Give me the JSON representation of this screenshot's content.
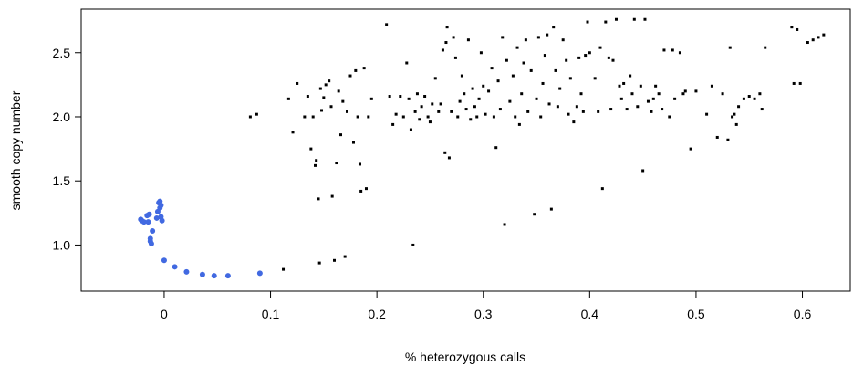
{
  "chart_data": {
    "type": "scatter",
    "title": "",
    "xlabel": "% heterozygous calls",
    "ylabel": "smooth copy number",
    "xlim": [
      -0.078,
      0.645
    ],
    "ylim": [
      0.64,
      2.84
    ],
    "xticks": [
      0,
      0.1,
      0.2,
      0.3,
      0.4,
      0.5,
      0.6
    ],
    "xtick_labels": [
      "0",
      "0.1",
      "0.2",
      "0.3",
      "0.4",
      "0.5",
      "0.6"
    ],
    "yticks": [
      1.0,
      1.5,
      2.0,
      2.5
    ],
    "ytick_labels": [
      "1.0",
      "1.5",
      "2.0",
      "2.5"
    ],
    "grid": false,
    "legend": "none",
    "series": [
      {
        "color": "#4169e1",
        "marker": "circle",
        "points": [
          [
            -0.022,
            1.2
          ],
          [
            -0.021,
            1.19
          ],
          [
            -0.019,
            1.18
          ],
          [
            -0.016,
            1.23
          ],
          [
            -0.014,
            1.24
          ],
          [
            -0.015,
            1.18
          ],
          [
            -0.013,
            1.05
          ],
          [
            -0.013,
            1.03
          ],
          [
            -0.012,
            1.01
          ],
          [
            -0.011,
            1.11
          ],
          [
            -0.007,
            1.21
          ],
          [
            -0.006,
            1.26
          ],
          [
            -0.005,
            1.33
          ],
          [
            -0.004,
            1.34
          ],
          [
            -0.004,
            1.29
          ],
          [
            -0.003,
            1.31
          ],
          [
            -0.003,
            1.22
          ],
          [
            -0.002,
            1.19
          ],
          [
            0.0,
            0.88
          ],
          [
            0.01,
            0.83
          ],
          [
            0.021,
            0.79
          ],
          [
            0.036,
            0.77
          ],
          [
            0.047,
            0.76
          ],
          [
            0.06,
            0.76
          ],
          [
            0.09,
            0.78
          ]
        ]
      },
      {
        "color": "#000000",
        "marker": "square",
        "points": [
          [
            0.081,
            2.0
          ],
          [
            0.087,
            2.02
          ],
          [
            0.112,
            0.81
          ],
          [
            0.117,
            2.14
          ],
          [
            0.121,
            1.88
          ],
          [
            0.125,
            2.26
          ],
          [
            0.132,
            2.0
          ],
          [
            0.135,
            2.16
          ],
          [
            0.138,
            1.75
          ],
          [
            0.14,
            2.0
          ],
          [
            0.142,
            1.62
          ],
          [
            0.143,
            1.66
          ],
          [
            0.145,
            1.36
          ],
          [
            0.146,
            0.86
          ],
          [
            0.147,
            2.22
          ],
          [
            0.148,
            2.05
          ],
          [
            0.15,
            2.15
          ],
          [
            0.152,
            2.25
          ],
          [
            0.155,
            2.28
          ],
          [
            0.157,
            2.08
          ],
          [
            0.158,
            1.38
          ],
          [
            0.16,
            0.88
          ],
          [
            0.162,
            1.64
          ],
          [
            0.164,
            2.2
          ],
          [
            0.166,
            1.86
          ],
          [
            0.168,
            2.12
          ],
          [
            0.17,
            0.91
          ],
          [
            0.172,
            2.04
          ],
          [
            0.175,
            2.32
          ],
          [
            0.178,
            1.8
          ],
          [
            0.18,
            2.36
          ],
          [
            0.182,
            2.0
          ],
          [
            0.184,
            1.63
          ],
          [
            0.185,
            1.42
          ],
          [
            0.188,
            2.38
          ],
          [
            0.19,
            1.44
          ],
          [
            0.192,
            2.0
          ],
          [
            0.195,
            2.14
          ],
          [
            0.209,
            2.72
          ],
          [
            0.212,
            2.16
          ],
          [
            0.215,
            1.94
          ],
          [
            0.218,
            2.02
          ],
          [
            0.222,
            2.16
          ],
          [
            0.225,
            2.0
          ],
          [
            0.228,
            2.42
          ],
          [
            0.23,
            2.14
          ],
          [
            0.232,
            1.9
          ],
          [
            0.234,
            1.0
          ],
          [
            0.236,
            2.04
          ],
          [
            0.238,
            2.18
          ],
          [
            0.24,
            1.98
          ],
          [
            0.242,
            2.08
          ],
          [
            0.245,
            2.16
          ],
          [
            0.248,
            2.0
          ],
          [
            0.25,
            1.96
          ],
          [
            0.252,
            2.1
          ],
          [
            0.255,
            2.3
          ],
          [
            0.258,
            2.04
          ],
          [
            0.26,
            2.1
          ],
          [
            0.262,
            2.52
          ],
          [
            0.264,
            1.72
          ],
          [
            0.265,
            2.58
          ],
          [
            0.266,
            2.7
          ],
          [
            0.268,
            1.68
          ],
          [
            0.27,
            2.04
          ],
          [
            0.272,
            2.62
          ],
          [
            0.274,
            2.46
          ],
          [
            0.276,
            2.0
          ],
          [
            0.278,
            2.12
          ],
          [
            0.28,
            2.32
          ],
          [
            0.282,
            2.18
          ],
          [
            0.284,
            2.06
          ],
          [
            0.286,
            2.6
          ],
          [
            0.288,
            1.98
          ],
          [
            0.29,
            2.22
          ],
          [
            0.292,
            2.08
          ],
          [
            0.294,
            2.0
          ],
          [
            0.296,
            2.14
          ],
          [
            0.298,
            2.5
          ],
          [
            0.3,
            2.24
          ],
          [
            0.302,
            2.02
          ],
          [
            0.305,
            2.2
          ],
          [
            0.308,
            2.38
          ],
          [
            0.31,
            2.0
          ],
          [
            0.312,
            1.76
          ],
          [
            0.314,
            2.28
          ],
          [
            0.316,
            2.06
          ],
          [
            0.318,
            2.62
          ],
          [
            0.32,
            1.16
          ],
          [
            0.322,
            2.44
          ],
          [
            0.325,
            2.12
          ],
          [
            0.328,
            2.32
          ],
          [
            0.33,
            2.0
          ],
          [
            0.332,
            2.54
          ],
          [
            0.334,
            1.94
          ],
          [
            0.336,
            2.18
          ],
          [
            0.338,
            2.42
          ],
          [
            0.34,
            2.6
          ],
          [
            0.342,
            2.04
          ],
          [
            0.345,
            2.36
          ],
          [
            0.348,
            1.24
          ],
          [
            0.35,
            2.14
          ],
          [
            0.352,
            2.62
          ],
          [
            0.354,
            2.0
          ],
          [
            0.356,
            2.26
          ],
          [
            0.358,
            2.48
          ],
          [
            0.36,
            2.64
          ],
          [
            0.362,
            2.1
          ],
          [
            0.364,
            1.28
          ],
          [
            0.366,
            2.7
          ],
          [
            0.368,
            2.36
          ],
          [
            0.37,
            2.08
          ],
          [
            0.372,
            2.22
          ],
          [
            0.375,
            2.6
          ],
          [
            0.378,
            2.44
          ],
          [
            0.38,
            2.02
          ],
          [
            0.382,
            2.3
          ],
          [
            0.385,
            1.96
          ],
          [
            0.388,
            2.08
          ],
          [
            0.39,
            2.46
          ],
          [
            0.392,
            2.18
          ],
          [
            0.394,
            2.04
          ],
          [
            0.396,
            2.48
          ],
          [
            0.398,
            2.74
          ],
          [
            0.4,
            2.5
          ],
          [
            0.405,
            2.3
          ],
          [
            0.408,
            2.04
          ],
          [
            0.41,
            2.54
          ],
          [
            0.412,
            1.44
          ],
          [
            0.415,
            2.74
          ],
          [
            0.418,
            2.46
          ],
          [
            0.42,
            2.06
          ],
          [
            0.422,
            2.44
          ],
          [
            0.425,
            2.76
          ],
          [
            0.428,
            2.24
          ],
          [
            0.43,
            2.14
          ],
          [
            0.432,
            2.26
          ],
          [
            0.435,
            2.06
          ],
          [
            0.438,
            2.32
          ],
          [
            0.44,
            2.18
          ],
          [
            0.442,
            2.76
          ],
          [
            0.445,
            2.08
          ],
          [
            0.448,
            2.24
          ],
          [
            0.45,
            1.58
          ],
          [
            0.452,
            2.76
          ],
          [
            0.455,
            2.12
          ],
          [
            0.458,
            2.04
          ],
          [
            0.46,
            2.14
          ],
          [
            0.462,
            2.24
          ],
          [
            0.465,
            2.18
          ],
          [
            0.468,
            2.06
          ],
          [
            0.47,
            2.52
          ],
          [
            0.475,
            2.0
          ],
          [
            0.478,
            2.52
          ],
          [
            0.48,
            2.14
          ],
          [
            0.485,
            2.5
          ],
          [
            0.488,
            2.18
          ],
          [
            0.49,
            2.2
          ],
          [
            0.495,
            1.75
          ],
          [
            0.5,
            2.2
          ],
          [
            0.51,
            2.02
          ],
          [
            0.515,
            2.24
          ],
          [
            0.52,
            1.84
          ],
          [
            0.525,
            2.18
          ],
          [
            0.53,
            1.82
          ],
          [
            0.532,
            2.54
          ],
          [
            0.534,
            2.0
          ],
          [
            0.536,
            2.02
          ],
          [
            0.538,
            1.94
          ],
          [
            0.54,
            2.08
          ],
          [
            0.545,
            2.14
          ],
          [
            0.55,
            2.16
          ],
          [
            0.555,
            2.14
          ],
          [
            0.56,
            2.18
          ],
          [
            0.562,
            2.06
          ],
          [
            0.565,
            2.54
          ],
          [
            0.59,
            2.7
          ],
          [
            0.592,
            2.26
          ],
          [
            0.595,
            2.68
          ],
          [
            0.598,
            2.26
          ],
          [
            0.605,
            2.58
          ],
          [
            0.61,
            2.6
          ],
          [
            0.615,
            2.62
          ],
          [
            0.62,
            2.64
          ]
        ]
      }
    ]
  }
}
